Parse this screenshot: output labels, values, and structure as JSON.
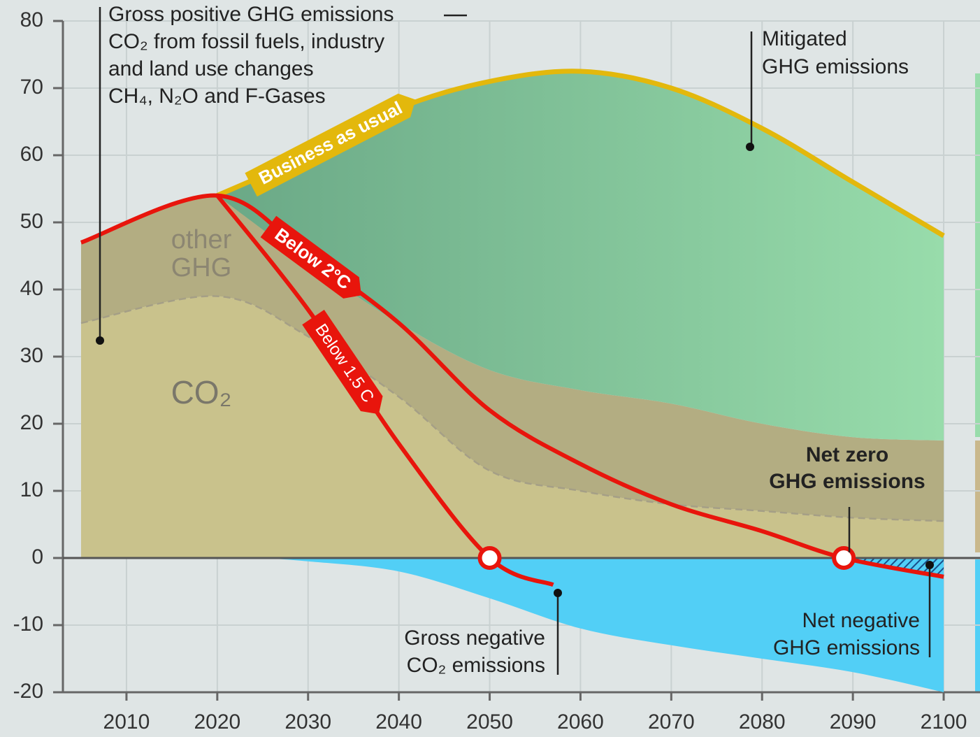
{
  "chart_data": {
    "type": "area-line",
    "xlim": [
      2003,
      2104
    ],
    "ylim": [
      -20,
      80
    ],
    "xticks": [
      2010,
      2020,
      2030,
      2040,
      2050,
      2060,
      2070,
      2080,
      2090,
      2100
    ],
    "yticks": [
      -20,
      -10,
      0,
      10,
      20,
      30,
      40,
      50,
      60,
      70,
      80
    ],
    "grid": true,
    "areas": [
      {
        "name": "CO₂",
        "color": "#c9c28c",
        "x": [
          2005,
          2020,
          2030,
          2040,
          2050,
          2060,
          2070,
          2080,
          2090,
          2100
        ],
        "values": [
          35,
          39,
          33,
          24,
          13,
          10,
          8,
          7,
          6,
          5.5
        ]
      },
      {
        "name": "other GHG",
        "color": "#b3ad82",
        "x": [
          2005,
          2020,
          2030,
          2040,
          2050,
          2060,
          2070,
          2080,
          2090,
          2100
        ],
        "values": [
          12,
          15,
          11,
          11,
          15,
          15,
          15,
          13,
          12,
          12
        ]
      },
      {
        "color": "#52cff6",
        "x": [
          2025,
          2030,
          2040,
          2050,
          2060,
          2070,
          2080,
          2090,
          2100
        ],
        "values": [
          0,
          -0.5,
          -2,
          -6,
          -10.5,
          -13,
          -15,
          -17,
          -20
        ]
      }
    ],
    "series": [
      {
        "name": "Business as usual",
        "color": "#e3b80c",
        "x": [
          2020,
          2030,
          2040,
          2050,
          2060,
          2070,
          2080,
          2090,
          2100
        ],
        "values": [
          54,
          60,
          67,
          71,
          72.5,
          70,
          64,
          56,
          48
        ]
      },
      {
        "name": "Below 2°C",
        "color": "#e8150c",
        "x": [
          2005,
          2020,
          2030,
          2040,
          2050,
          2060,
          2070,
          2080,
          2089,
          2100
        ],
        "values": [
          47,
          54,
          45,
          35,
          22,
          14,
          8,
          4,
          0,
          -2.8
        ]
      },
      {
        "name": "Below 1.5 C",
        "color": "#e8150c",
        "x": [
          2020,
          2030,
          2040,
          2050,
          2057
        ],
        "values": [
          54,
          37,
          17,
          0,
          -4
        ]
      }
    ],
    "annotations": [
      [
        "Gross positive GHG emissions",
        "CO₂ from fossil fuels, industry",
        "and land use changes",
        "CH₄, N₂O and F-Gases"
      ],
      [
        "Mitigated",
        "GHG emissions"
      ],
      [
        "Net zero",
        "GHG emissions"
      ],
      [
        "Gross negative",
        "CO₂ emissions"
      ],
      [
        "Net negative",
        "GHG emissions"
      ]
    ]
  }
}
